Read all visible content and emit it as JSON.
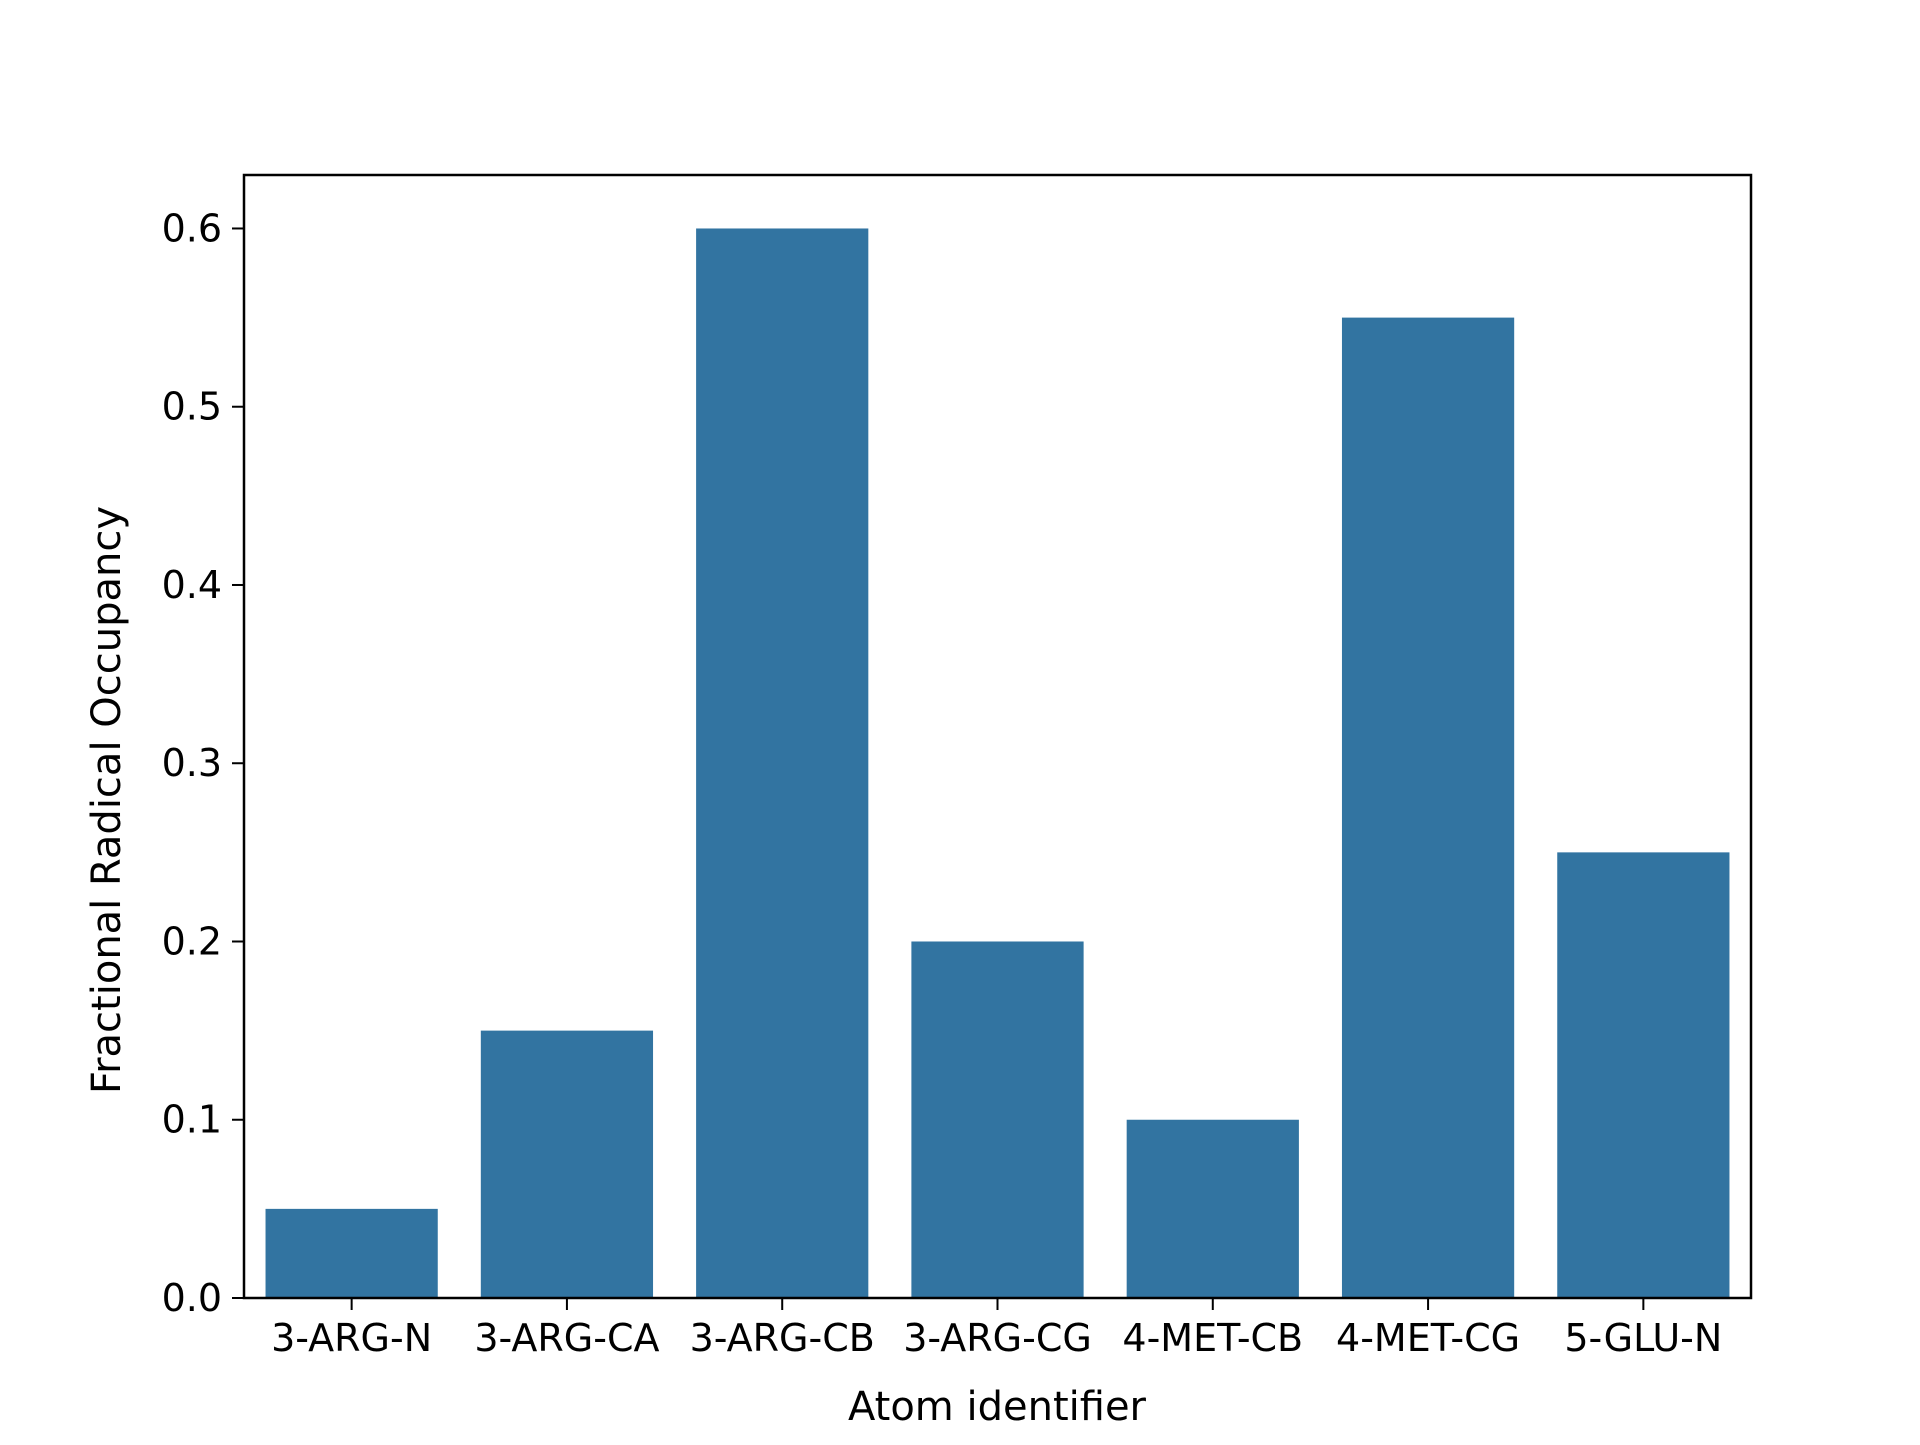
{
  "chart_data": {
    "type": "bar",
    "title": "",
    "xlabel": "Atom identifier",
    "ylabel": "Fractional Radical Occupancy",
    "categories": [
      "3-ARG-N",
      "3-ARG-CA",
      "3-ARG-CB",
      "3-ARG-CG",
      "4-MET-CB",
      "4-MET-CG",
      "5-GLU-N"
    ],
    "values": [
      0.05,
      0.15,
      0.6,
      0.2,
      0.1,
      0.55,
      0.25
    ],
    "ylim": [
      0,
      0.63
    ],
    "yticks": [
      0.0,
      0.1,
      0.2,
      0.3,
      0.4,
      0.5,
      0.6
    ],
    "ytick_labels": [
      "0.0",
      "0.1",
      "0.2",
      "0.3",
      "0.4",
      "0.5",
      "0.6"
    ],
    "grid": false,
    "legend": "none",
    "bar_color": "#3274a1"
  }
}
